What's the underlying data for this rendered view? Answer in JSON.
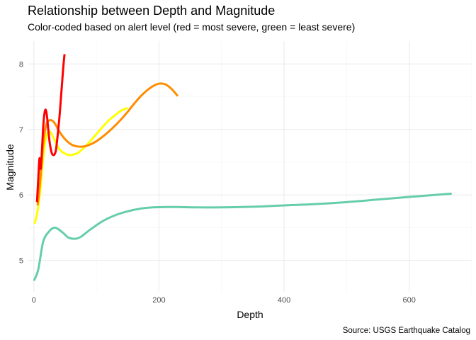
{
  "chart_data": {
    "type": "line",
    "title": "Relationship between Depth and Magnitude",
    "subtitle": "Color-coded based on alert level (red = most severe, green = least severe)",
    "caption": "Source: USGS Earthquake Catalog",
    "xlabel": "Depth",
    "ylabel": "Magnitude",
    "xlim": [
      -10,
      700
    ],
    "ylim": [
      4.52,
      8.35
    ],
    "x_ticks": [
      0,
      200,
      400,
      600
    ],
    "y_ticks": [
      5,
      6,
      7,
      8
    ],
    "grid": true,
    "legend": "none",
    "series": [
      {
        "color": "#66cdaa",
        "x": [
          0,
          7,
          15,
          25,
          33,
          40,
          48,
          55,
          65,
          75,
          90,
          110,
          130,
          150,
          170,
          190,
          210,
          230,
          260,
          300,
          350,
          400,
          450,
          500,
          550,
          600,
          668
        ],
        "y": [
          4.69,
          4.86,
          5.29,
          5.45,
          5.5,
          5.47,
          5.41,
          5.35,
          5.33,
          5.36,
          5.47,
          5.6,
          5.69,
          5.75,
          5.79,
          5.81,
          5.815,
          5.815,
          5.81,
          5.81,
          5.82,
          5.84,
          5.86,
          5.89,
          5.93,
          5.97,
          6.02
        ]
      },
      {
        "color": "#ffff00",
        "x": [
          1,
          5,
          10,
          15,
          20,
          25,
          30,
          35,
          40,
          45,
          50,
          55,
          60,
          70,
          80,
          90,
          100,
          110,
          120,
          130,
          140,
          150
        ],
        "y": [
          5.56,
          5.71,
          6.05,
          6.58,
          6.9,
          6.97,
          6.9,
          6.8,
          6.71,
          6.66,
          6.63,
          6.61,
          6.61,
          6.64,
          6.72,
          6.82,
          6.93,
          7.04,
          7.14,
          7.22,
          7.29,
          7.33
        ]
      },
      {
        "color": "#ff8c00",
        "x": [
          6,
          10,
          15,
          20,
          25,
          30,
          35,
          40,
          50,
          60,
          70,
          80,
          90,
          100,
          110,
          120,
          130,
          140,
          150,
          160,
          170,
          180,
          190,
          200,
          210,
          220,
          230
        ],
        "y": [
          5.84,
          6.2,
          6.78,
          7.08,
          7.14,
          7.13,
          7.07,
          6.98,
          6.85,
          6.77,
          6.74,
          6.74,
          6.77,
          6.82,
          6.89,
          6.97,
          7.06,
          7.16,
          7.27,
          7.39,
          7.5,
          7.59,
          7.66,
          7.7,
          7.69,
          7.62,
          7.51
        ]
      },
      {
        "color": "#ff0000",
        "x": [
          5,
          7,
          9,
          11,
          13,
          15,
          17,
          19,
          21,
          23,
          25,
          27,
          29,
          31,
          33,
          35,
          37,
          39,
          41,
          43,
          45,
          47,
          49
        ],
        "y": [
          5.89,
          6.25,
          6.56,
          6.4,
          6.7,
          7.05,
          7.25,
          7.3,
          7.2,
          7.0,
          6.82,
          6.7,
          6.63,
          6.61,
          6.62,
          6.67,
          6.82,
          7.0,
          7.2,
          7.45,
          7.7,
          7.95,
          8.15
        ]
      }
    ]
  }
}
